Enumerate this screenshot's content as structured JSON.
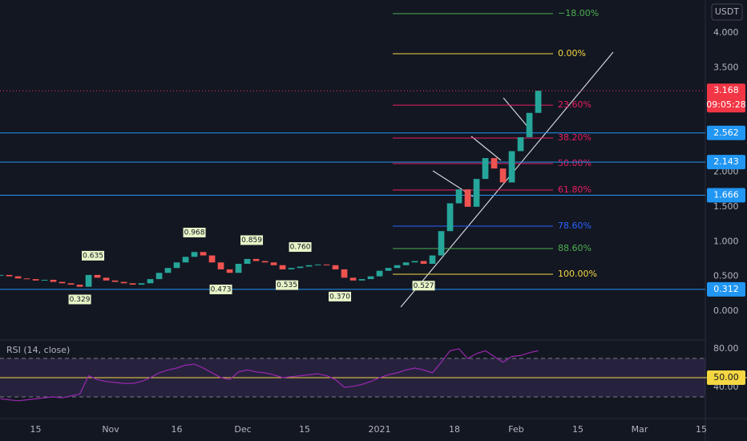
{
  "chart_data": {
    "type": "candlestick",
    "currency": "USDT",
    "x": [
      6,
      8,
      10,
      12,
      14,
      16,
      18,
      20,
      22,
      24,
      26,
      28,
      30,
      32,
      34,
      36,
      38,
      40,
      42,
      44,
      46,
      48,
      50,
      52,
      54,
      56,
      58,
      60,
      62,
      64,
      66,
      68,
      70,
      72,
      74,
      76,
      78,
      80,
      82,
      84,
      86,
      88,
      90,
      92,
      94,
      96,
      98,
      100,
      102,
      104,
      106,
      108,
      110,
      112,
      114,
      116,
      118,
      120,
      122,
      124,
      126,
      128
    ],
    "close": [
      0.52,
      0.5,
      0.47,
      0.46,
      0.44,
      0.45,
      0.42,
      0.4,
      0.38,
      0.35,
      0.52,
      0.48,
      0.44,
      0.42,
      0.4,
      0.38,
      0.4,
      0.46,
      0.55,
      0.62,
      0.7,
      0.78,
      0.85,
      0.8,
      0.7,
      0.6,
      0.55,
      0.68,
      0.75,
      0.72,
      0.7,
      0.66,
      0.6,
      0.62,
      0.64,
      0.66,
      0.67,
      0.66,
      0.6,
      0.48,
      0.44,
      0.46,
      0.5,
      0.58,
      0.62,
      0.66,
      0.7,
      0.72,
      0.68,
      0.8,
      1.15,
      1.55,
      1.75,
      1.5,
      1.9,
      2.2,
      2.05,
      1.85,
      2.3,
      2.5,
      2.85,
      3.168
    ],
    "up_color": "#26a69a",
    "down_color": "#ef5350",
    "xlim": [
      5.9,
      165.9
    ],
    "xticks": [
      {
        "value": 14,
        "label": "15"
      },
      {
        "value": 31,
        "label": "Nov"
      },
      {
        "value": 46,
        "label": "16"
      },
      {
        "value": 61,
        "label": "Dec"
      },
      {
        "value": 75,
        "label": "15"
      },
      {
        "value": 92,
        "label": "2021"
      },
      {
        "value": 109,
        "label": "18"
      },
      {
        "value": 123,
        "label": "Feb"
      },
      {
        "value": 137,
        "label": "15"
      },
      {
        "value": 151,
        "label": "Mar"
      },
      {
        "value": 165,
        "label": "15"
      }
    ],
    "ylim": [
      -0.369,
      4.473
    ],
    "yticks": [
      {
        "value": 4,
        "label": "4.000"
      },
      {
        "value": 3.5,
        "label": "3.500"
      },
      {
        "value": 2,
        "label": "2.000"
      },
      {
        "value": 1.5,
        "label": "1.500"
      },
      {
        "value": 1,
        "label": "1.000"
      },
      {
        "value": 0.5,
        "label": "0.500"
      },
      {
        "value": 0,
        "label": "0.000"
      }
    ],
    "price": {
      "value": 3.168,
      "label": "3.168",
      "color": "#f23645"
    },
    "countdown": "09:05:28",
    "levels": [
      {
        "value": 2.562,
        "label": "2.562"
      },
      {
        "value": 2.143,
        "label": "2.143"
      },
      {
        "value": 1.666,
        "label": "1.666"
      },
      {
        "value": 0.312,
        "label": "0.312"
      }
    ],
    "level_color": "#2196f3",
    "fib": [
      {
        "label": "−18.00%",
        "value": 4.277,
        "color": "#4caf50"
      },
      {
        "label": "0.00%",
        "value": 3.7,
        "color": "#f5d742"
      },
      {
        "label": "23.60%",
        "value": 2.962,
        "color": "#e91e63"
      },
      {
        "label": "38.20%",
        "value": 2.489,
        "color": "#e91e63"
      },
      {
        "label": "50.00%",
        "value": 2.121,
        "color": "#e91e63"
      },
      {
        "label": "61.80%",
        "value": 1.741,
        "color": "#e91e63"
      },
      {
        "label": "78.60%",
        "value": 1.222,
        "color": "#2962ff"
      },
      {
        "label": "88.60%",
        "value": 0.899,
        "color": "#4caf50"
      },
      {
        "label": "100.00%",
        "value": 0.53,
        "color": "#f5d742"
      }
    ],
    "pivots": [
      {
        "label": "0.635",
        "value": 0.635,
        "x": 27,
        "kind": "high"
      },
      {
        "label": "0.968",
        "value": 0.968,
        "x": 50,
        "kind": "high"
      },
      {
        "label": "0.859",
        "value": 0.859,
        "x": 63,
        "kind": "high"
      },
      {
        "label": "0.760",
        "value": 0.76,
        "x": 74,
        "kind": "high"
      },
      {
        "label": "0.329",
        "value": 0.329,
        "x": 24,
        "kind": "low"
      },
      {
        "label": "0.473",
        "value": 0.473,
        "x": 56,
        "kind": "low"
      },
      {
        "label": "0.535",
        "value": 0.535,
        "x": 71,
        "kind": "low"
      },
      {
        "label": "0.370",
        "value": 0.37,
        "x": 83,
        "kind": "low"
      },
      {
        "label": "0.527",
        "value": 0.527,
        "x": 102,
        "kind": "low"
      }
    ],
    "rsi": {
      "title": "RSI (14, close)",
      "color": "#9c27b0",
      "values": [
        28,
        27,
        26,
        27,
        28,
        29,
        30,
        29,
        31,
        33,
        52,
        48,
        46,
        45,
        44,
        44,
        46,
        50,
        55,
        58,
        60,
        63,
        64,
        60,
        55,
        50,
        48,
        56,
        58,
        56,
        55,
        53,
        50,
        51,
        52,
        53,
        54,
        52,
        48,
        40,
        41,
        43,
        46,
        50,
        53,
        55,
        58,
        60,
        58,
        55,
        66,
        78,
        80,
        70,
        75,
        78,
        72,
        66,
        72,
        73,
        76,
        78
      ],
      "ylim": [
        9.17,
        85.83
      ],
      "yticks": [
        {
          "value": 80,
          "label": "80.00"
        },
        {
          "value": 40,
          "label": "40.00"
        }
      ],
      "bands": [
        70,
        30
      ],
      "level": {
        "value": 50,
        "label": "50.00"
      }
    }
  }
}
